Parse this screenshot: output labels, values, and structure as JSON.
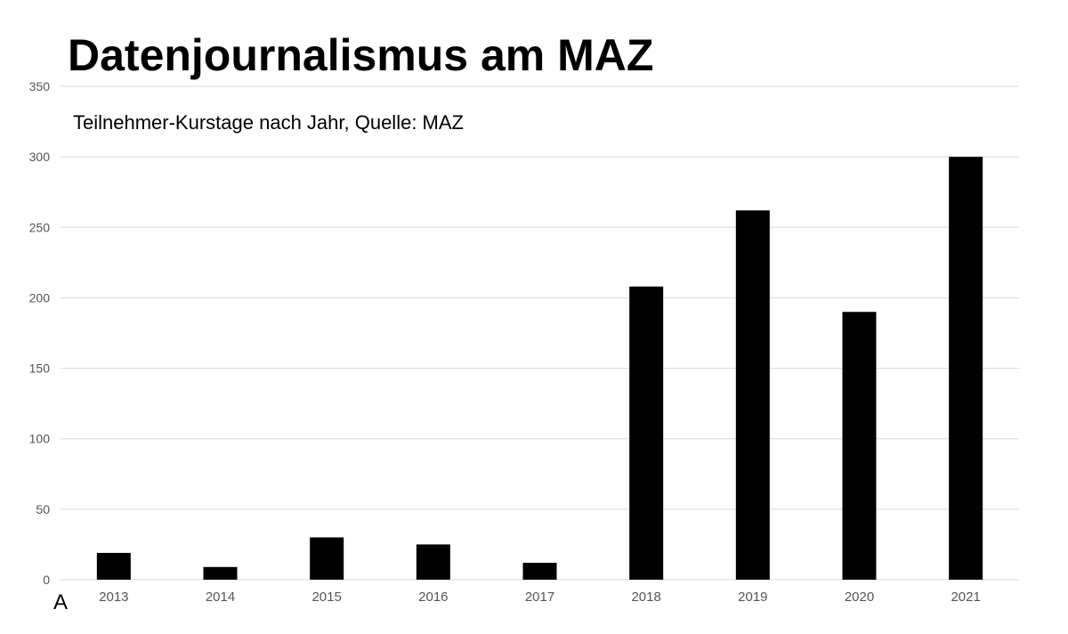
{
  "chart_data": {
    "type": "bar",
    "title": "Datenjournalismus am MAZ",
    "subtitle": "Teilnehmer-Kurstage nach Jahr, Quelle: MAZ",
    "xlabel": "",
    "ylabel": "",
    "categories": [
      "2013",
      "2014",
      "2015",
      "2016",
      "2017",
      "2018",
      "2019",
      "2020",
      "2021"
    ],
    "values": [
      19,
      9,
      30,
      25,
      12,
      208,
      262,
      190,
      300
    ],
    "ylim": [
      0,
      350
    ],
    "yticks": [
      0,
      50,
      100,
      150,
      200,
      250,
      300,
      350
    ],
    "grid": true,
    "bar_color": "#000000",
    "grid_color": "#d9d9d9",
    "tick_label_color": "#555555"
  },
  "corner_label": "A"
}
